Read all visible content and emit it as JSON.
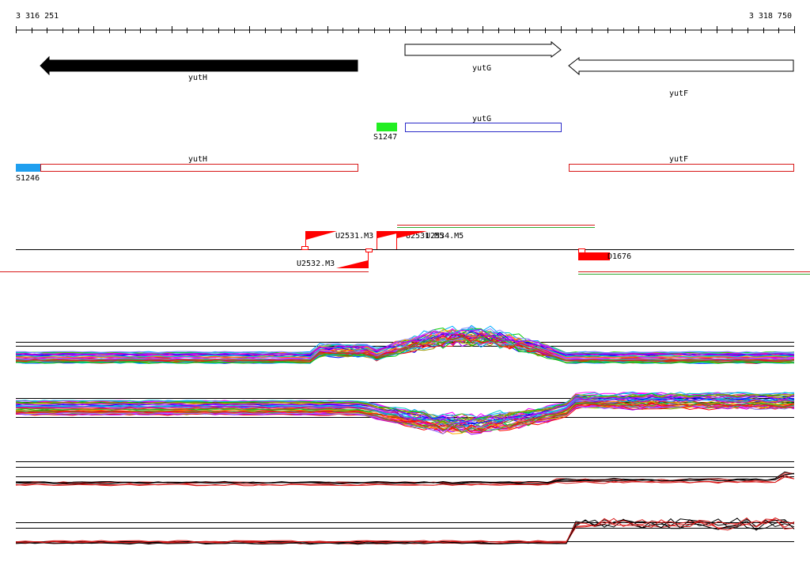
{
  "ruler": {
    "start_label": "3 316 251",
    "end_label": "3 318 750"
  },
  "genes": [
    {
      "id": "gene-yutH",
      "name": "yutH",
      "strand": "-"
    },
    {
      "id": "gene-yutG",
      "name": "yutG",
      "strand": "+"
    },
    {
      "id": "gene-yutF",
      "name": "yutF",
      "strand": "-"
    }
  ],
  "transcripts": [
    {
      "id": "transcript-yutG",
      "label": "yutG",
      "color": "#2a2ac8"
    },
    {
      "id": "transcript-yutH",
      "label": "yutH",
      "color": "#d81818"
    },
    {
      "id": "transcript-yutF",
      "label": "yutF",
      "color": "#d81818"
    }
  ],
  "regulatory_elements": [
    {
      "id": "element-s1247",
      "label": "S1247",
      "color": "#22ee22"
    },
    {
      "id": "element-s1246",
      "label": "S1246",
      "color": "#1f9fef"
    }
  ],
  "sites": [
    {
      "id": "site-u2531-m3",
      "label": "U2531.M3"
    },
    {
      "id": "site-u2531-m5",
      "label": "U2531.M5"
    },
    {
      "id": "site-u2534-m5",
      "label": "U2534.M5"
    },
    {
      "id": "site-u2532-m3",
      "label": "U2532.M3"
    },
    {
      "id": "site-d1676",
      "label": "D1676"
    }
  ],
  "colors": {
    "gene_reverse_fill": "#000000",
    "gene_forward_fill": "#ffffff",
    "site_marker": "#ff0000",
    "axis": "#000000",
    "track_palette": [
      "#ff00ff",
      "#00cc00",
      "#0000ff",
      "#ff8800",
      "#00cccc",
      "#cc00cc",
      "#999900",
      "#ff0000",
      "#8888ff",
      "#33aa33",
      "#dd2222",
      "#aa00ff",
      "#00aaff",
      "#ffaa00"
    ]
  }
}
